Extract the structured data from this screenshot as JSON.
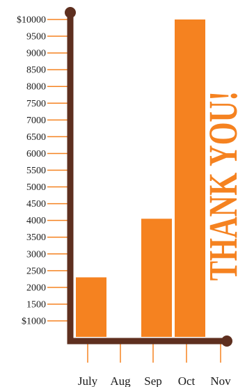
{
  "colors": {
    "bar": "#f58220",
    "axis": "#5e2f1f",
    "tick": "#f58220",
    "thanks": "#f58220"
  },
  "side_text": "THANK YOU!",
  "chart_data": {
    "type": "bar",
    "categories": [
      "July",
      "Aug",
      "Sep",
      "Oct",
      "Nov"
    ],
    "values": [
      2300,
      0,
      4050,
      10000,
      0
    ],
    "title": "",
    "xlabel": "",
    "ylabel": "",
    "ylim": [
      0,
      10000
    ],
    "ytick_labels": [
      "$10000",
      "9500",
      "9000",
      "8500",
      "8000",
      "7500",
      "7000",
      "6500",
      "6000",
      "5500",
      "5000",
      "4500",
      "4000",
      "3500",
      "3000",
      "2500",
      "2000",
      "1500",
      "$1000"
    ],
    "grid": false,
    "legend": "none"
  }
}
